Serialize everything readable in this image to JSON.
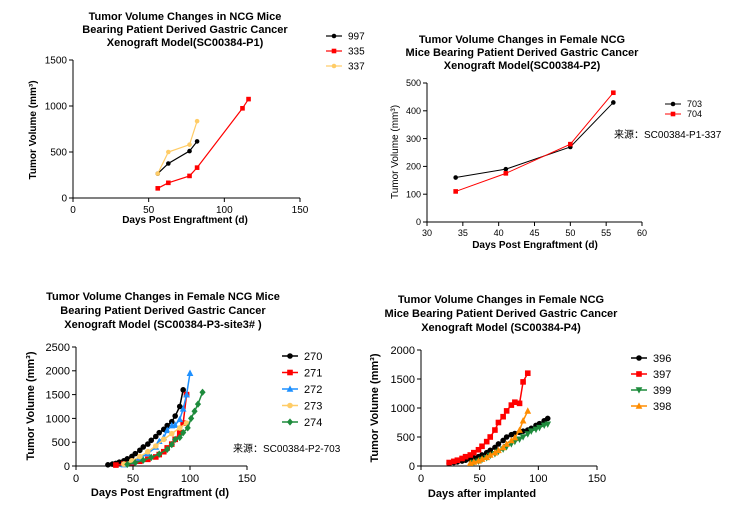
{
  "chart_data": [
    {
      "type": "line",
      "title_lines": [
        "Tumor Volume  Changes in NCG Mice",
        "Bearing Patient Derived Gastric Cancer",
        "Xenograft Model(SC00384-P1)"
      ],
      "xlabel": "Days Post Engraftment (d)",
      "ylabel": "Tumor Volume (mm³)",
      "xlim": [
        0,
        150
      ],
      "ylim": [
        0,
        1500
      ],
      "xticks": [
        0,
        50,
        100,
        150
      ],
      "yticks": [
        0,
        500,
        1000,
        1500
      ],
      "legend_position": "right",
      "note": "",
      "series": [
        {
          "name": "997",
          "color": "#000000",
          "marker": "circle",
          "x": [
            56,
            63,
            77,
            82
          ],
          "y": [
            265,
            375,
            510,
            615
          ]
        },
        {
          "name": "335",
          "color": "#FF0000",
          "marker": "square",
          "x": [
            56,
            63,
            77,
            82,
            112,
            116
          ],
          "y": [
            105,
            165,
            240,
            330,
            975,
            1075
          ]
        },
        {
          "name": "337",
          "color": "#FFCC66",
          "marker": "circle",
          "x": [
            56,
            63,
            77,
            82
          ],
          "y": [
            265,
            500,
            580,
            835
          ]
        }
      ]
    },
    {
      "type": "line",
      "title_lines": [
        "Tumor Volume  Changes in Female NCG",
        "Mice Bearing Patient Derived Gastric Cancer",
        "Xenograft Model(SC00384-P2)"
      ],
      "xlabel": "Days Post Engraftment (d)",
      "ylabel": "Tumor Volume (mm³)",
      "xlim": [
        30,
        60
      ],
      "ylim": [
        0,
        500
      ],
      "xticks": [
        30,
        35,
        40,
        45,
        50,
        55,
        60
      ],
      "yticks": [
        0,
        100,
        200,
        300,
        400,
        500
      ],
      "legend_position": "right",
      "note": "来源：SC00384-P1-337",
      "series": [
        {
          "name": "703",
          "color": "#000000",
          "marker": "circle",
          "x": [
            34,
            41,
            50,
            56
          ],
          "y": [
            160,
            190,
            270,
            430
          ]
        },
        {
          "name": "704",
          "color": "#FF0000",
          "marker": "square",
          "x": [
            34,
            41,
            50,
            56
          ],
          "y": [
            110,
            175,
            280,
            465
          ]
        }
      ]
    },
    {
      "type": "line",
      "title_lines": [
        "Tumor Volume Changes in Female NCG Mice",
        "Bearing Patient Derived  Gastric Cancer",
        "Xenograft Model (SC00384-P3-site3# )"
      ],
      "xlabel": "Days Post Engraftment (d)",
      "ylabel": "Tumor Volume (mm³)",
      "xlim": [
        0,
        150
      ],
      "ylim": [
        0,
        2500
      ],
      "xticks": [
        0,
        50,
        100,
        150
      ],
      "yticks": [
        0,
        500,
        1000,
        1500,
        2000,
        2500
      ],
      "legend_position": "right",
      "note": "来源：SC00384-P2-703",
      "series": [
        {
          "name": "270",
          "color": "#000000",
          "marker": "circle",
          "x": [
            28,
            32,
            35,
            38,
            42,
            45,
            49,
            52,
            56,
            59,
            63,
            66,
            70,
            73,
            77,
            80,
            84,
            87,
            91,
            94,
            97
          ],
          "y": [
            25,
            40,
            55,
            80,
            110,
            150,
            200,
            260,
            330,
            400,
            460,
            540,
            620,
            700,
            770,
            850,
            930,
            1050,
            1250,
            1600,
            1500
          ]
        },
        {
          "name": "271",
          "color": "#FF0000",
          "marker": "square",
          "x": [
            35,
            42,
            49,
            56,
            63,
            70,
            73,
            77,
            80,
            84,
            87,
            91,
            94,
            97
          ],
          "y": [
            20,
            40,
            70,
            100,
            140,
            190,
            240,
            300,
            380,
            460,
            560,
            700,
            900,
            1500
          ]
        },
        {
          "name": "272",
          "color": "#1E90FF",
          "marker": "triangle",
          "x": [
            42,
            49,
            56,
            63,
            70,
            73,
            77,
            80,
            84,
            87,
            91,
            94,
            97,
            100
          ],
          "y": [
            30,
            90,
            170,
            260,
            400,
            520,
            600,
            750,
            850,
            860,
            980,
            1200,
            1500,
            1950
          ]
        },
        {
          "name": "273",
          "color": "#FFCC66",
          "marker": "circle",
          "x": [
            42,
            49,
            56,
            63,
            70,
            77,
            84,
            91,
            97
          ],
          "y": [
            40,
            110,
            200,
            300,
            420,
            560,
            680,
            800,
            900
          ]
        },
        {
          "name": "274",
          "color": "#1E8B3C",
          "marker": "diamond",
          "x": [
            45,
            52,
            59,
            66,
            73,
            80,
            84,
            87,
            91,
            94,
            98,
            101,
            104,
            107,
            111
          ],
          "y": [
            35,
            70,
            120,
            180,
            250,
            350,
            450,
            560,
            600,
            700,
            800,
            1000,
            1150,
            1300,
            1550
          ]
        }
      ]
    },
    {
      "type": "line",
      "title_lines": [
        "Tumor Volume  Changes in Female NCG",
        "Mice Bearing Patient Derived Gastric Cancer",
        "Xenograft Model (SC00384-P4)"
      ],
      "xlabel": "Days after implanted",
      "ylabel": "Tumor Volume (mm³)",
      "xlim": [
        0,
        150
      ],
      "ylim": [
        0,
        2000
      ],
      "xticks": [
        0,
        50,
        100,
        150
      ],
      "yticks": [
        0,
        500,
        1000,
        1500,
        2000
      ],
      "legend_position": "right",
      "note": "",
      "series": [
        {
          "name": "396",
          "color": "#000000",
          "marker": "circle",
          "x": [
            24,
            28,
            31,
            35,
            38,
            42,
            45,
            49,
            52,
            56,
            59,
            63,
            66,
            70,
            73,
            77,
            80,
            84,
            87,
            91,
            94,
            98,
            101,
            105,
            108
          ],
          "y": [
            50,
            60,
            70,
            85,
            100,
            115,
            140,
            160,
            190,
            230,
            270,
            320,
            380,
            440,
            500,
            540,
            560,
            580,
            600,
            620,
            650,
            700,
            730,
            780,
            820
          ]
        },
        {
          "name": "397",
          "color": "#FF0000",
          "marker": "square",
          "x": [
            24,
            28,
            31,
            35,
            38,
            42,
            45,
            49,
            52,
            56,
            59,
            63,
            66,
            70,
            73,
            77,
            80,
            84,
            87,
            91
          ],
          "y": [
            60,
            80,
            100,
            130,
            160,
            190,
            230,
            280,
            340,
            420,
            500,
            620,
            750,
            850,
            950,
            1050,
            1100,
            1080,
            1450,
            1600
          ]
        },
        {
          "name": "399",
          "color": "#1E8B3C",
          "marker": "triangle-down",
          "x": [
            45,
            49,
            52,
            56,
            59,
            63,
            66,
            70,
            73,
            77,
            80,
            84,
            87,
            91,
            94,
            98,
            101,
            105,
            108
          ],
          "y": [
            60,
            80,
            110,
            140,
            180,
            210,
            250,
            290,
            330,
            380,
            420,
            460,
            500,
            550,
            600,
            630,
            660,
            700,
            720
          ]
        },
        {
          "name": "398",
          "color": "#FF8C00",
          "marker": "triangle",
          "x": [
            42,
            45,
            49,
            52,
            56,
            59,
            63,
            66,
            70,
            73,
            77,
            80,
            84,
            87,
            91
          ],
          "y": [
            50,
            70,
            90,
            120,
            150,
            190,
            230,
            270,
            320,
            380,
            440,
            490,
            620,
            780,
            950
          ]
        }
      ]
    }
  ]
}
